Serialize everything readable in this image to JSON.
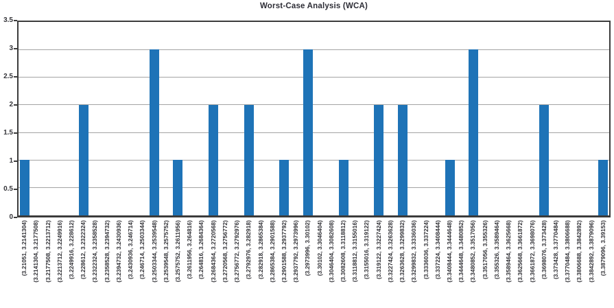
{
  "colors": {
    "background": "#FFFFFF",
    "bar": "#1E73B7",
    "frame": "#3B3B3B",
    "grid": "#A3A3A3",
    "title_text": "#2C2C35",
    "tick_text": "#333338"
  },
  "chart_data": {
    "type": "bar",
    "title": "Worst-Case Analysis (WCA)",
    "xlabel": "",
    "ylabel": "",
    "ylim": [
      0,
      3.5
    ],
    "yticks": [
      0,
      0.5,
      1,
      1.5,
      2,
      2.5,
      3,
      3.5
    ],
    "grid": true,
    "legend": null,
    "categories": [
      "(3.21051, 3.2141304)",
      "(3.2141304, 3.2177508)",
      "(3.2177508, 3.2213712)",
      "(3.2213712, 3.2249916)",
      "(3.2249916, 3.228612)",
      "(3.228612, 3.2322324)",
      "(3.2322324, 3.2358528)",
      "(3.2358528, 3.2394732)",
      "(3.2394732, 3.2430936)",
      "(3.2430936, 3.246714)",
      "(3.246714, 3.2503344)",
      "(3.2503344, 3.2539548)",
      "(3.2539548, 3.2575752)",
      "(3.2575752, 3.2611956)",
      "(3.2611956, 3.264816)",
      "(3.264816, 3.2684364)",
      "(3.2684364, 3.2720568)",
      "(3.2720568, 3.2756772)",
      "(3.2756772, 3.2792976)",
      "(3.2792976, 3.282918)",
      "(3.282918, 3.2865384)",
      "(3.2865384, 3.2901588)",
      "(3.2901588, 3.2937792)",
      "(3.2937792, 3.2973996)",
      "(3.2973996, 3.30102)",
      "(3.30102, 3.3046404)",
      "(3.3046404, 3.3082608)",
      "(3.3082608, 3.3118812)",
      "(3.3118812, 3.3155016)",
      "(3.3155016, 3.319122)",
      "(3.319122, 3.3227424)",
      "(3.3227424, 3.3263628)",
      "(3.3263628, 3.3299832)",
      "(3.3299832, 3.3336036)",
      "(3.3336036, 3.337224)",
      "(3.337224, 3.3408444)",
      "(3.3408444, 3.3444648)",
      "(3.3444648, 3.3480852)",
      "(3.3480852, 3.3517056)",
      "(3.3517056, 3.355326)",
      "(3.355326, 3.3589464)",
      "(3.3589464, 3.3625668)",
      "(3.3625668, 3.3661872)",
      "(3.3661872, 3.3698076)",
      "(3.3698076, 3.373428)",
      "(3.373428, 3.3770484)",
      "(3.3770484, 3.3806688)",
      "(3.3806688, 3.3842892)",
      "(3.3842892, 3.3879096)",
      "(3.3879096, 3.39153)"
    ],
    "values": [
      1,
      0,
      0,
      0,
      0,
      2,
      0,
      0,
      0,
      0,
      0,
      3,
      0,
      1,
      0,
      0,
      2,
      0,
      0,
      2,
      0,
      0,
      1,
      0,
      3,
      0,
      0,
      1,
      0,
      0,
      2,
      0,
      2,
      0,
      0,
      0,
      1,
      0,
      3,
      0,
      0,
      0,
      0,
      0,
      2,
      0,
      0,
      0,
      0,
      1
    ]
  }
}
